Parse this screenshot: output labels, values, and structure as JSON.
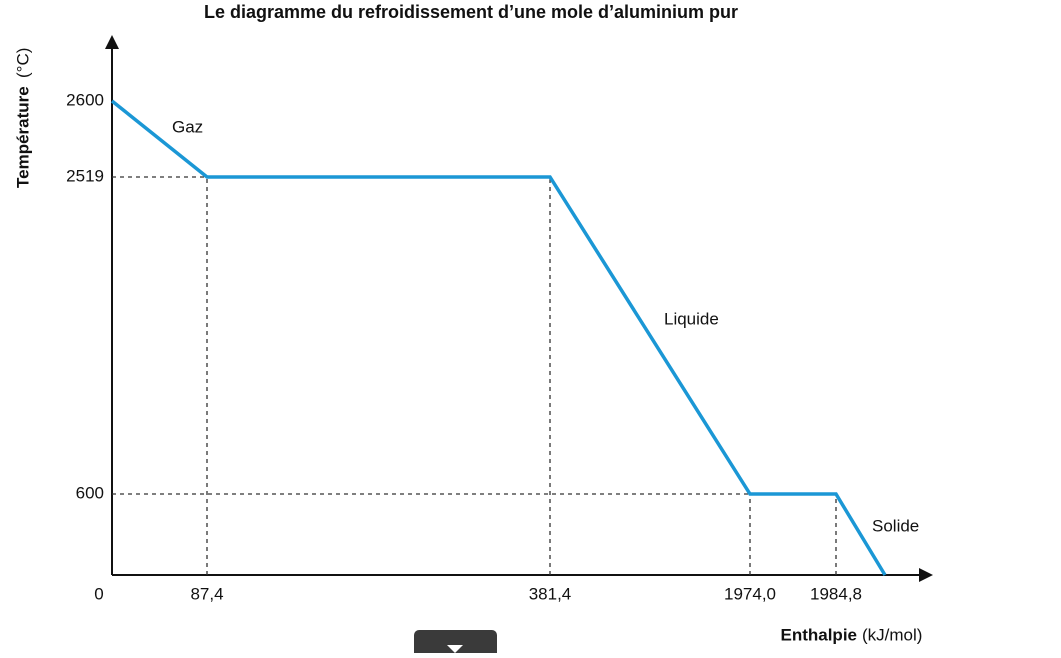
{
  "chart_data": {
    "type": "line",
    "title": "Le diagramme du refroidissement d’une mole d’aluminium pur",
    "ylabel": "Température",
    "ylabel_unit": "(°C)",
    "xlabel": "Enthalpie",
    "xlabel_unit": "(kJ/mol)",
    "xlim": [
      0,
      2000
    ],
    "ylim": [
      0,
      2600
    ],
    "xticks": [
      0,
      {
        "value": 87.4,
        "label": "87,4"
      },
      {
        "value": 381.4,
        "label": "381,4"
      },
      {
        "value": 1974.0,
        "label": "1974,0"
      },
      {
        "value": 1984.8,
        "label": "1984,8"
      }
    ],
    "yticks": [
      600,
      2519,
      2600
    ],
    "series": [
      {
        "name": "Aluminium",
        "color": "#1b97d5",
        "x": [
          0,
          87.4,
          381.4,
          1974.0,
          1984.8,
          2000
        ],
        "values": [
          2600,
          2519,
          2519,
          600,
          600,
          0
        ]
      }
    ],
    "annotations": [
      "Gaz",
      "Liquide",
      "Solide"
    ]
  }
}
